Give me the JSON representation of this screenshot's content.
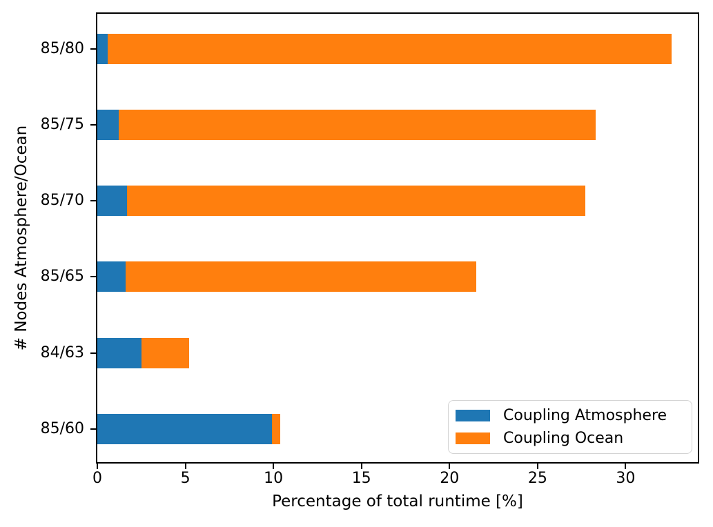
{
  "chart_data": {
    "type": "bar",
    "orientation": "horizontal",
    "stacked": true,
    "title": "",
    "xlabel": "Percentage of total runtime [%]",
    "ylabel": "# Nodes Atmosphere/Ocean",
    "categories": [
      "85/80",
      "85/75",
      "85/70",
      "85/65",
      "84/63",
      "85/60"
    ],
    "series": [
      {
        "name": "Coupling Atmosphere",
        "color": "#1f77b4",
        "values": [
          0.6,
          1.2,
          1.7,
          1.6,
          2.5,
          9.9
        ]
      },
      {
        "name": "Coupling Ocean",
        "color": "#ff7f0e",
        "values": [
          32.0,
          27.1,
          26.0,
          19.9,
          2.7,
          0.5
        ]
      }
    ],
    "xlim": [
      0,
      34.1
    ],
    "xticks": [
      0,
      5,
      10,
      15,
      20,
      25,
      30
    ],
    "grid": false,
    "legend": {
      "position": "lower right",
      "entries": [
        "Coupling Atmosphere",
        "Coupling Ocean"
      ]
    },
    "colors": {
      "spine": "#000000",
      "background": "#ffffff"
    }
  }
}
